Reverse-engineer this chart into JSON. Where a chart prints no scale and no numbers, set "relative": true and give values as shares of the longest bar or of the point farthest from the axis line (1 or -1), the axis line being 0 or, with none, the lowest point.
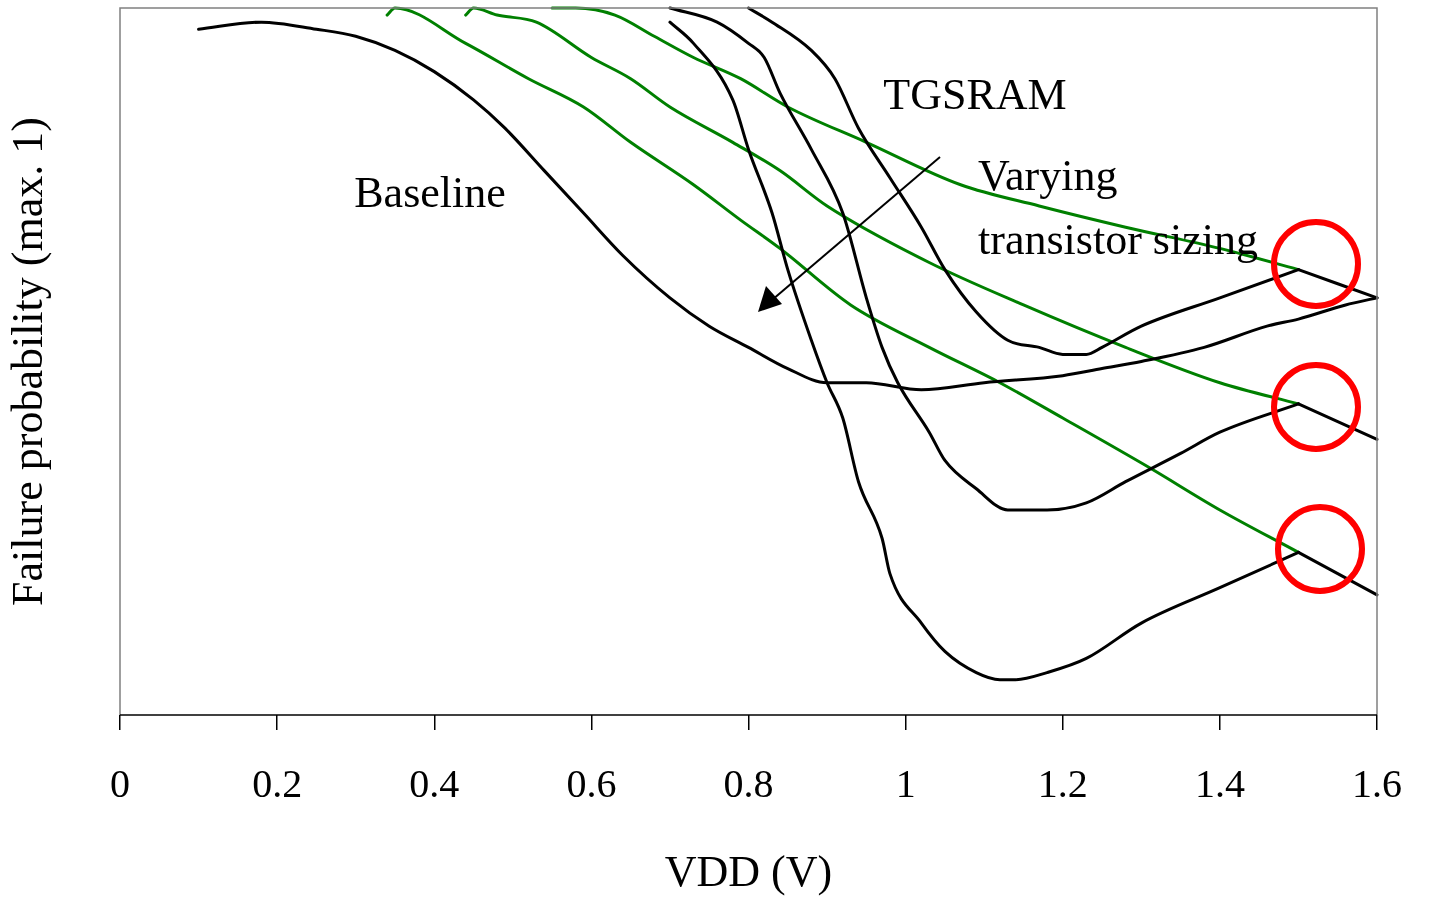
{
  "chart_data": {
    "type": "line",
    "relative": true,
    "xlabel": "VDD (V)",
    "ylabel": "Failure probability (max. 1)",
    "xlim": [
      0,
      1.6
    ],
    "xticks": [
      0,
      0.2,
      0.4,
      0.6,
      0.8,
      1,
      1.2,
      1.4,
      1.6
    ],
    "legend": false,
    "grid": false,
    "marker": "none",
    "line_style": "solid",
    "annotations": [
      "Baseline",
      "TGSRAM",
      "Varying transistor sizing"
    ],
    "series": [
      {
        "color": "#000000",
        "x": [
          0.1,
          0.18,
          0.25,
          0.3,
          0.35,
          0.4,
          0.45,
          0.49,
          0.54,
          0.59,
          0.64,
          0.7,
          0.75,
          0.8,
          0.85,
          0.9,
          0.95,
          1.02,
          1.1,
          1.2,
          1.25,
          1.3,
          1.38,
          1.46,
          1.5,
          1.56,
          1.6
        ],
        "values": [
          0.97,
          0.98,
          0.97,
          0.96,
          0.94,
          0.91,
          0.87,
          0.83,
          0.77,
          0.71,
          0.65,
          0.59,
          0.55,
          0.52,
          0.49,
          0.47,
          0.47,
          0.46,
          0.47,
          0.48,
          0.49,
          0.5,
          0.52,
          0.55,
          0.56,
          0.58,
          0.59
        ]
      },
      {
        "color": "#000000",
        "x": [
          0.7,
          0.73,
          0.78,
          0.8,
          0.83,
          0.85,
          0.88,
          0.9,
          0.92,
          0.94,
          0.97,
          0.98,
          1.02,
          1.05,
          1.09,
          1.12,
          1.14,
          1.18,
          1.23,
          1.3,
          1.4,
          1.5
        ],
        "values": [
          0.98,
          0.95,
          0.87,
          0.8,
          0.71,
          0.63,
          0.53,
          0.47,
          0.42,
          0.33,
          0.25,
          0.2,
          0.13,
          0.09,
          0.06,
          0.05,
          0.05,
          0.06,
          0.08,
          0.13,
          0.18,
          0.23
        ]
      },
      {
        "color": "#000000",
        "x": [
          0.7,
          0.76,
          0.8,
          0.82,
          0.84,
          0.88,
          0.92,
          0.95,
          0.97,
          0.99,
          1.03,
          1.05,
          1.09,
          1.13,
          1.18,
          1.23,
          1.28,
          1.35,
          1.4,
          1.5
        ],
        "values": [
          1,
          0.98,
          0.95,
          0.93,
          0.88,
          0.8,
          0.71,
          0.59,
          0.52,
          0.47,
          0.4,
          0.36,
          0.32,
          0.29,
          0.29,
          0.3,
          0.33,
          0.37,
          0.4,
          0.44
        ]
      },
      {
        "color": "#000000",
        "x": [
          0.8,
          0.83,
          0.88,
          0.91,
          0.94,
          0.98,
          1.02,
          1.05,
          1.09,
          1.13,
          1.17,
          1.2,
          1.23,
          1.25,
          1.3,
          1.4,
          1.5
        ],
        "values": [
          1,
          0.98,
          0.94,
          0.9,
          0.83,
          0.76,
          0.69,
          0.63,
          0.57,
          0.53,
          0.52,
          0.51,
          0.51,
          0.52,
          0.55,
          0.59,
          0.63
        ]
      },
      {
        "color": "#000000",
        "x": [
          1.5,
          1.6
        ],
        "values": [
          0.23,
          0.17
        ]
      },
      {
        "color": "#000000",
        "x": [
          1.5,
          1.6
        ],
        "values": [
          0.44,
          0.39
        ]
      },
      {
        "color": "#000000",
        "x": [
          1.5,
          1.6
        ],
        "values": [
          0.63,
          0.59
        ]
      },
      {
        "color": "#008000",
        "x": [
          0.34,
          0.35,
          0.44,
          0.52,
          0.59,
          0.65,
          0.73,
          0.79,
          0.84,
          0.93,
          1.03,
          1.12,
          1.2,
          1.31,
          1.4,
          1.5
        ],
        "values": [
          0.99,
          1,
          0.95,
          0.9,
          0.86,
          0.81,
          0.75,
          0.7,
          0.66,
          0.58,
          0.52,
          0.47,
          0.42,
          0.35,
          0.29,
          0.23
        ]
      },
      {
        "color": "#008000",
        "x": [
          0.44,
          0.45,
          0.48,
          0.53,
          0.6,
          0.65,
          0.7,
          0.78,
          0.84,
          0.9,
          1.03,
          1.15,
          1.28,
          1.4,
          1.5
        ],
        "values": [
          0.99,
          1,
          0.99,
          0.98,
          0.93,
          0.9,
          0.86,
          0.81,
          0.77,
          0.72,
          0.64,
          0.58,
          0.52,
          0.47,
          0.44
        ]
      },
      {
        "color": "#008000",
        "x": [
          0.55,
          0.58,
          0.63,
          0.68,
          0.73,
          0.79,
          0.85,
          0.95,
          1.07,
          1.17,
          1.28,
          1.4,
          1.5
        ],
        "values": [
          1,
          1,
          0.99,
          0.96,
          0.93,
          0.9,
          0.86,
          0.81,
          0.75,
          0.72,
          0.69,
          0.66,
          0.63
        ]
      }
    ]
  }
}
